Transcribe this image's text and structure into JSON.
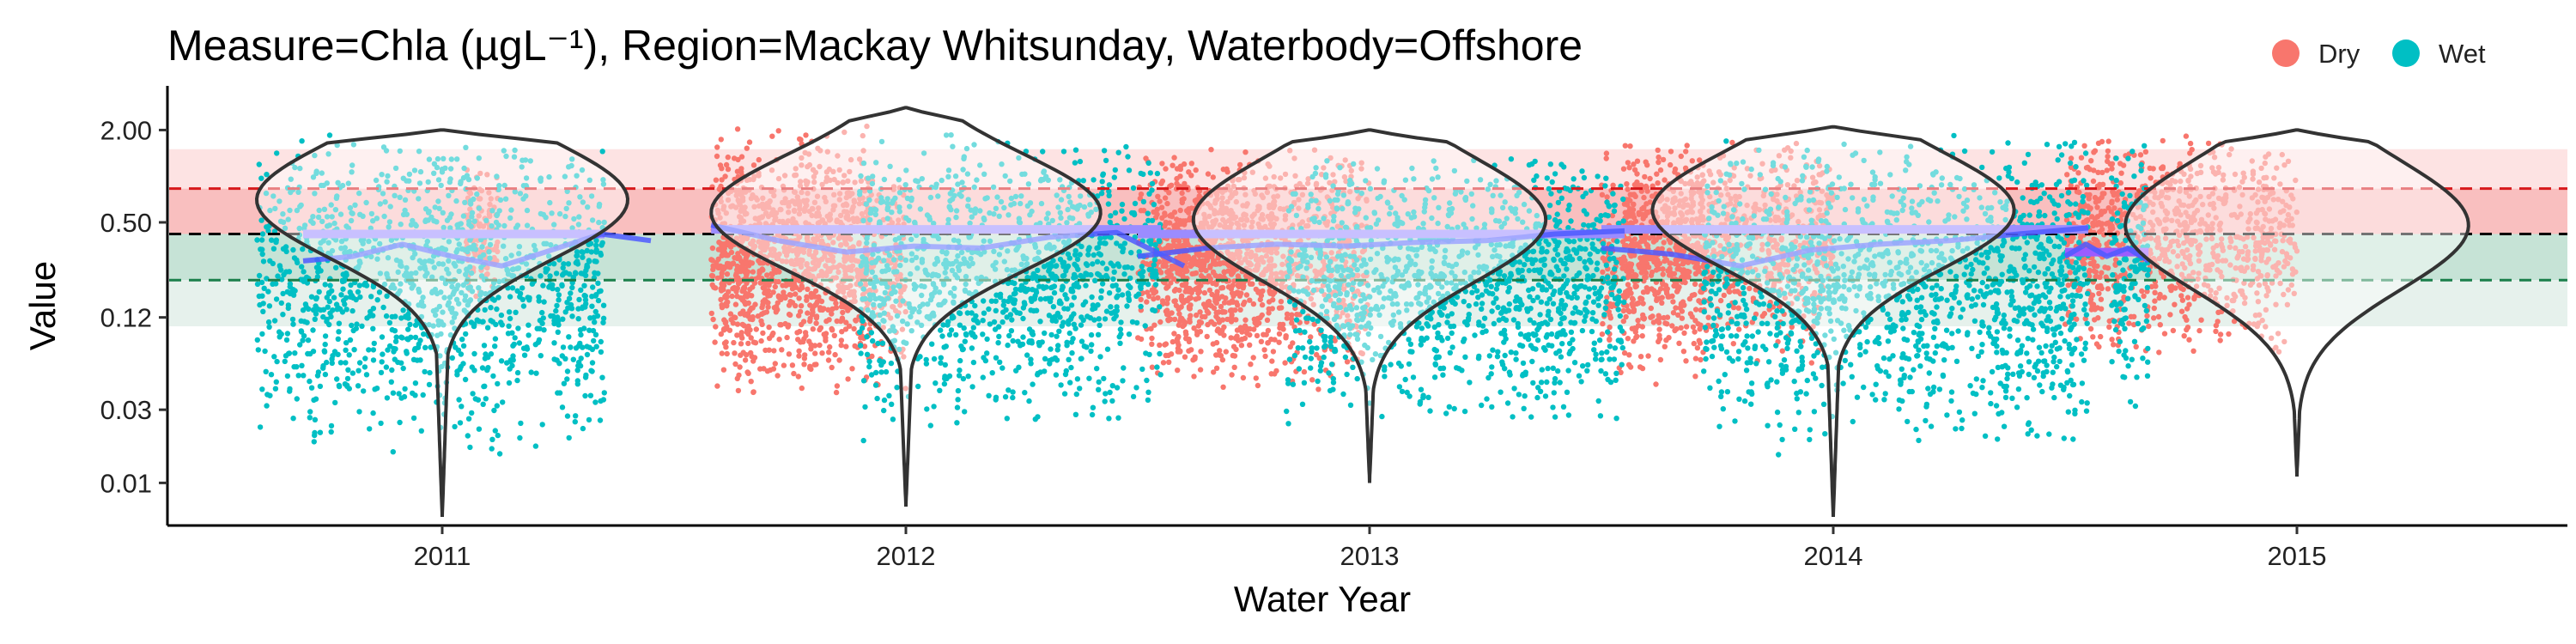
{
  "chart_data": {
    "type": "scatter",
    "title": "Measure=Chla (µgL⁻¹), Region=Mackay Whitsunday, Waterbody=Offshore",
    "xlabel": "Water Year",
    "ylabel": "Value",
    "y_scale": "log",
    "ylim": [
      0.006,
      3.0
    ],
    "yticks": [
      2.0,
      0.5,
      0.12,
      0.03,
      0.01
    ],
    "ytick_labels": [
      "2.00",
      "0.50",
      "0.12",
      "0.03",
      "0.01"
    ],
    "xticks": [
      "2011",
      "2012",
      "2013",
      "2014",
      "2015"
    ],
    "legend": {
      "position": "top-right",
      "items": [
        {
          "label": "Dry",
          "color": "#F8766D"
        },
        {
          "label": "Wet",
          "color": "#00BFC4"
        }
      ]
    },
    "reference_lines": [
      {
        "value": 0.83,
        "color": "#D7191C",
        "style": "dashed"
      },
      {
        "value": 0.42,
        "color": "#000000",
        "style": "dashed"
      },
      {
        "value": 0.21,
        "color": "#1A7F4B",
        "style": "dashed"
      }
    ],
    "reference_bands": [
      {
        "from": 0.83,
        "to": 1.5,
        "color": "#FDE3E3"
      },
      {
        "from": 0.42,
        "to": 0.83,
        "color": "#F9BFBF"
      },
      {
        "from": 0.21,
        "to": 0.42,
        "color": "#C6E3D6"
      },
      {
        "from": 0.105,
        "to": 0.21,
        "color": "#E6F1EC"
      }
    ],
    "series": [
      {
        "name": "Dry",
        "color": "#F8766D",
        "periods": [
          {
            "year": "2011",
            "season": "start",
            "from": 0.05,
            "to": 0.12,
            "low": 0.1,
            "high": 1.2
          },
          {
            "year": "2011",
            "season": "end",
            "from": 0.6,
            "to": 1.0,
            "low": 0.02,
            "high": 1.3
          },
          {
            "year": "2012",
            "season": "start",
            "from": -0.42,
            "to": -0.08,
            "low": 0.015,
            "high": 2.4
          },
          {
            "year": "2012",
            "season": "end",
            "from": 0.55,
            "to": 1.0,
            "low": 0.018,
            "high": 1.6
          },
          {
            "year": "2013",
            "season": "start",
            "from": -0.5,
            "to": -0.2,
            "low": 0.02,
            "high": 1.5
          },
          {
            "year": "2013",
            "season": "end",
            "from": 0.55,
            "to": 1.0,
            "low": 0.03,
            "high": 1.8
          },
          {
            "year": "2014",
            "season": "start",
            "from": -0.5,
            "to": -0.28,
            "low": 0.02,
            "high": 1.7
          },
          {
            "year": "2014",
            "season": "end",
            "from": 0.55,
            "to": 1.0,
            "low": 0.03,
            "high": 2.0
          },
          {
            "year": "2015",
            "season": "start",
            "from": -0.5,
            "to": -0.42,
            "low": 0.04,
            "high": 1.8
          }
        ]
      },
      {
        "name": "Wet",
        "color": "#00BFC4",
        "periods": [
          {
            "year": "2011",
            "season": "wet",
            "from": -0.4,
            "to": 0.35,
            "low": 0.006,
            "high": 1.9
          },
          {
            "year": "2012",
            "season": "wet",
            "from": -0.1,
            "to": 0.55,
            "low": 0.008,
            "high": 2.0
          },
          {
            "year": "2013",
            "season": "wet",
            "from": -0.18,
            "to": 0.55,
            "low": 0.01,
            "high": 1.5
          },
          {
            "year": "2014",
            "season": "wet",
            "from": -0.28,
            "to": 0.55,
            "low": 0.006,
            "high": 1.9
          },
          {
            "year": "2015",
            "season": "wet",
            "from": -0.4,
            "to": -0.32,
            "low": 0.012,
            "high": 1.8
          }
        ]
      }
    ],
    "median_bars": [
      {
        "year": "2011",
        "from": -0.3,
        "to": 0.35,
        "value": 0.42,
        "color": "#9B8CFF"
      },
      {
        "year": "2012",
        "from": -0.42,
        "to": 0.55,
        "value": 0.45,
        "color": "#9B8CFF"
      },
      {
        "year": "2013",
        "from": -0.5,
        "to": 0.55,
        "value": 0.42,
        "color": "#9B8CFF"
      },
      {
        "year": "2014",
        "from": -0.5,
        "to": 0.55,
        "value": 0.45,
        "color": "#9B8CFF"
      },
      {
        "year": "2015",
        "from": -0.5,
        "to": -0.32,
        "value": 0.32,
        "color": "#9B5CFF"
      }
    ],
    "trend_lines": [
      {
        "year": "2011",
        "color": "#4D5BFF",
        "from": -0.3,
        "to": 0.45,
        "y": [
          0.28,
          0.3,
          0.36,
          0.3,
          0.26,
          0.33,
          0.42,
          0.38
        ]
      },
      {
        "year": "2012",
        "color": "#4D5BFF",
        "from": -0.42,
        "to": 0.6,
        "y": [
          0.48,
          0.38,
          0.32,
          0.35,
          0.34,
          0.4,
          0.43,
          0.26
        ]
      },
      {
        "year": "2013",
        "color": "#4D5BFF",
        "from": -0.5,
        "to": 0.55,
        "y": [
          0.3,
          0.34,
          0.36,
          0.35,
          0.37,
          0.38,
          0.42,
          0.44
        ]
      },
      {
        "year": "2014",
        "color": "#4D5BFF",
        "from": -0.5,
        "to": 0.55,
        "y": [
          0.34,
          0.31,
          0.26,
          0.33,
          0.36,
          0.38,
          0.42,
          0.46
        ]
      },
      {
        "year": "2015",
        "color": "#4D5BFF",
        "from": -0.5,
        "to": -0.32,
        "y": [
          0.3,
          0.36,
          0.3,
          0.34,
          0.28
        ]
      }
    ],
    "violins": [
      {
        "year": "2011",
        "min": 0.006,
        "max": 2.0,
        "mode": 0.7,
        "spread": 0.38,
        "halfwidth": 0.4
      },
      {
        "year": "2012",
        "min": 0.007,
        "max": 2.8,
        "mode": 0.58,
        "spread": 0.38,
        "halfwidth": 0.42
      },
      {
        "year": "2013",
        "min": 0.01,
        "max": 2.0,
        "mode": 0.52,
        "spread": 0.4,
        "halfwidth": 0.38
      },
      {
        "year": "2014",
        "min": 0.006,
        "max": 2.1,
        "mode": 0.6,
        "spread": 0.38,
        "halfwidth": 0.39
      },
      {
        "year": "2015",
        "min": 0.011,
        "max": 2.0,
        "mode": 0.48,
        "spread": 0.42,
        "halfwidth": 0.37
      }
    ]
  }
}
